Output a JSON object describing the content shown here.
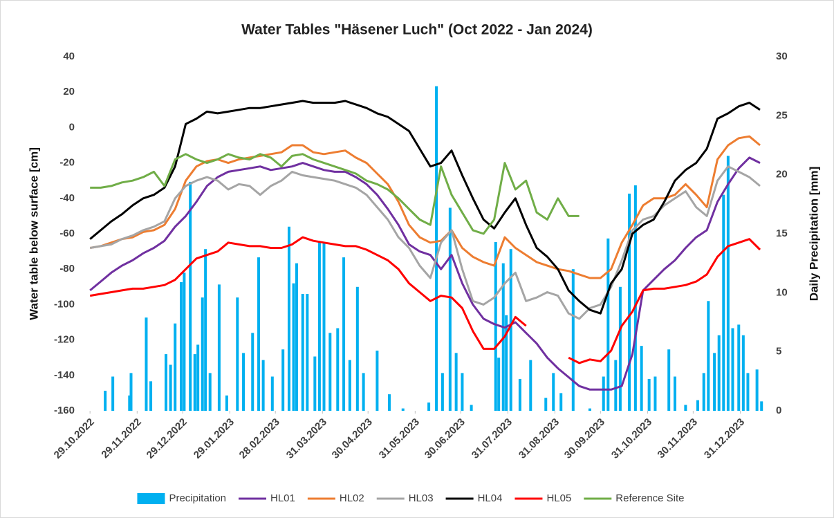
{
  "chart_data": {
    "type": "line",
    "title": "Water Tables \"Häsener Luch\" (Oct 2022 - Jan 2024)",
    "y_label": "Water table below surface [cm]",
    "y2_label": "Daily Precipitation [mm]",
    "xlim": [
      "2022-10-23",
      "2024-01-18"
    ],
    "xticks": [
      {
        "value": "2022-10-29",
        "label": "29.10.2022"
      },
      {
        "value": "2022-11-29",
        "label": "29.11.2022"
      },
      {
        "value": "2022-12-29",
        "label": "29.12.2022"
      },
      {
        "value": "2023-01-29",
        "label": "29.01.2023"
      },
      {
        "value": "2023-02-28",
        "label": "28.02.2023"
      },
      {
        "value": "2023-03-31",
        "label": "31.03.2023"
      },
      {
        "value": "2023-04-30",
        "label": "30.04.2023"
      },
      {
        "value": "2023-05-31",
        "label": "31.05.2023"
      },
      {
        "value": "2023-06-30",
        "label": "30.06.2023"
      },
      {
        "value": "2023-07-31",
        "label": "31.07.2023"
      },
      {
        "value": "2023-08-31",
        "label": "31.08.2023"
      },
      {
        "value": "2023-09-30",
        "label": "30.09.2023"
      },
      {
        "value": "2023-10-31",
        "label": "31.10.2023"
      },
      {
        "value": "2023-11-30",
        "label": "30.11.2023"
      },
      {
        "value": "2023-12-31",
        "label": "31.12.2023"
      }
    ],
    "ylim": [
      -160,
      40
    ],
    "yticks": [
      -160,
      -140,
      -120,
      -100,
      -80,
      -60,
      -40,
      -20,
      0,
      20,
      40
    ],
    "y2lim": [
      0,
      30
    ],
    "y2ticks": [
      0,
      5,
      10,
      15,
      20,
      25,
      30
    ],
    "legend": "bottom",
    "x": [
      "2022-10-29",
      "2022-11-05",
      "2022-11-12",
      "2022-11-19",
      "2022-11-26",
      "2022-12-03",
      "2022-12-10",
      "2022-12-17",
      "2022-12-24",
      "2022-12-31",
      "2023-01-07",
      "2023-01-14",
      "2023-01-21",
      "2023-01-28",
      "2023-02-04",
      "2023-02-11",
      "2023-02-18",
      "2023-02-25",
      "2023-03-04",
      "2023-03-11",
      "2023-03-18",
      "2023-03-25",
      "2023-04-01",
      "2023-04-08",
      "2023-04-15",
      "2023-04-22",
      "2023-04-29",
      "2023-05-06",
      "2023-05-13",
      "2023-05-20",
      "2023-05-27",
      "2023-06-03",
      "2023-06-10",
      "2023-06-17",
      "2023-06-24",
      "2023-07-01",
      "2023-07-08",
      "2023-07-15",
      "2023-07-22",
      "2023-07-29",
      "2023-08-05",
      "2023-08-12",
      "2023-08-19",
      "2023-08-26",
      "2023-09-02",
      "2023-09-09",
      "2023-09-16",
      "2023-09-23",
      "2023-09-30",
      "2023-10-07",
      "2023-10-14",
      "2023-10-21",
      "2023-10-28",
      "2023-11-04",
      "2023-11-11",
      "2023-11-18",
      "2023-11-25",
      "2023-12-02",
      "2023-12-09",
      "2023-12-16",
      "2023-12-23",
      "2023-12-30",
      "2024-01-06",
      "2024-01-13"
    ],
    "series": [
      {
        "name": "Precipitation",
        "type": "bar",
        "axis": "y2",
        "color": "#00b0f0",
        "x": [
          "2022-11-08",
          "2022-11-13",
          "2022-11-24",
          "2022-11-25",
          "2022-12-05",
          "2022-12-08",
          "2022-12-18",
          "2022-12-21",
          "2022-12-24",
          "2022-12-28",
          "2022-12-30",
          "2023-01-03",
          "2023-01-06",
          "2023-01-08",
          "2023-01-11",
          "2023-01-13",
          "2023-01-16",
          "2023-01-22",
          "2023-01-27",
          "2023-02-03",
          "2023-02-07",
          "2023-02-13",
          "2023-02-17",
          "2023-02-20",
          "2023-02-26",
          "2023-03-05",
          "2023-03-09",
          "2023-03-12",
          "2023-03-14",
          "2023-03-18",
          "2023-03-21",
          "2023-03-26",
          "2023-03-29",
          "2023-04-01",
          "2023-04-05",
          "2023-04-10",
          "2023-04-14",
          "2023-04-18",
          "2023-04-23",
          "2023-04-27",
          "2023-05-06",
          "2023-05-14",
          "2023-05-23",
          "2023-06-09",
          "2023-06-14",
          "2023-06-18",
          "2023-06-23",
          "2023-06-27",
          "2023-07-01",
          "2023-07-07",
          "2023-07-23",
          "2023-07-25",
          "2023-07-28",
          "2023-07-30",
          "2023-08-02",
          "2023-08-08",
          "2023-08-15",
          "2023-08-25",
          "2023-08-30",
          "2023-09-04",
          "2023-09-12",
          "2023-09-23",
          "2023-10-02",
          "2023-10-05",
          "2023-10-10",
          "2023-10-13",
          "2023-10-19",
          "2023-10-23",
          "2023-10-27",
          "2023-11-01",
          "2023-11-05",
          "2023-11-14",
          "2023-11-18",
          "2023-11-25",
          "2023-12-03",
          "2023-12-07",
          "2023-12-10",
          "2023-12-14",
          "2023-12-17",
          "2023-12-20",
          "2023-12-23",
          "2023-12-26",
          "2023-12-30",
          "2024-01-02",
          "2024-01-05",
          "2024-01-11",
          "2024-01-14"
        ],
        "values": [
          1.7,
          2.9,
          1.3,
          3.2,
          7.9,
          2.5,
          4.8,
          3.9,
          7.4,
          10.9,
          11.7,
          19.4,
          4.8,
          5.6,
          9.6,
          13.7,
          3.2,
          10.7,
          1.3,
          9.6,
          4.9,
          6.6,
          13,
          4.3,
          2.9,
          5.2,
          15.6,
          10.8,
          12.5,
          9.9,
          9.9,
          4.6,
          14.3,
          14.2,
          6.6,
          7,
          13,
          4.3,
          10.5,
          3.2,
          5.1,
          1.4,
          0.2,
          0.7,
          27.5,
          3.2,
          17.2,
          4.9,
          3.2,
          0.5,
          14.3,
          4.5,
          12.5,
          8.1,
          13.7,
          2.7,
          4.3,
          1.1,
          3.2,
          1.5,
          12,
          0.2,
          2.9,
          14.6,
          4.3,
          10.5,
          18.4,
          19.1,
          5.5,
          2.7,
          2.9,
          5.2,
          2.9,
          0.5,
          0.9,
          3.2,
          9.3,
          4.9,
          6.4,
          18.3,
          21.6,
          7,
          7.3,
          6.4,
          3.2,
          3.5,
          0.8
        ]
      },
      {
        "name": "HL01",
        "color": "#7030a0",
        "values": [
          -92,
          -87,
          -82,
          -78,
          -75,
          -71,
          -68,
          -64,
          -56,
          -50,
          -42,
          -33,
          -28,
          -25,
          -24,
          -23,
          -22,
          -24,
          -23,
          -22,
          -20,
          -22,
          -24,
          -25,
          -25,
          -28,
          -32,
          -38,
          -46,
          -55,
          -66,
          -70,
          -72,
          -80,
          -72,
          -88,
          -100,
          -108,
          -111,
          -113,
          -110,
          -116,
          -122,
          -130,
          -136,
          -141,
          -146,
          -148,
          -148,
          -148,
          -146,
          -128,
          -92,
          -86,
          -80,
          -75,
          -68,
          -62,
          -58,
          -42,
          -32,
          -23,
          -17,
          -20
        ]
      },
      {
        "name": "HL02",
        "color": "#ed7d31",
        "values": [
          -68,
          -67,
          -65,
          -63,
          -62,
          -59,
          -58,
          -55,
          -46,
          -30,
          -22,
          -19,
          -18,
          -20,
          -18,
          -17,
          -16,
          -15,
          -14,
          -10,
          -10,
          -14,
          -15,
          -14,
          -13,
          -17,
          -20,
          -26,
          -32,
          -42,
          -55,
          -62,
          -65,
          -64,
          -58,
          -68,
          -73,
          -76,
          -78,
          -62,
          -68,
          -72,
          -76,
          -78,
          -80,
          -81,
          -83,
          -85,
          -85,
          -80,
          -65,
          -55,
          -44,
          -40,
          -40,
          -38,
          -32,
          -38,
          -45,
          -18,
          -10,
          -6,
          -5,
          -10
        ]
      },
      {
        "name": "HL03",
        "color": "#a5a5a5",
        "values": [
          -68,
          -67,
          -66,
          -63,
          -61,
          -58,
          -56,
          -53,
          -40,
          -33,
          -30,
          -28,
          -30,
          -35,
          -32,
          -33,
          -38,
          -33,
          -30,
          -25,
          -27,
          -28,
          -29,
          -30,
          -32,
          -34,
          -38,
          -45,
          -52,
          -62,
          -68,
          -78,
          -85,
          -65,
          -58,
          -80,
          -98,
          -100,
          -96,
          -88,
          -82,
          -98,
          -96,
          -93,
          -95,
          -105,
          -108,
          -102,
          -100,
          -90,
          -75,
          -58,
          -52,
          -50,
          -44,
          -40,
          -36,
          -45,
          -50,
          -30,
          -22,
          -25,
          -28,
          -33
        ]
      },
      {
        "name": "HL04",
        "color": "#000000",
        "values": [
          -63,
          -58,
          -53,
          -49,
          -44,
          -40,
          -38,
          -34,
          -22,
          2,
          5,
          9,
          8,
          9,
          10,
          11,
          11,
          12,
          13,
          14,
          15,
          14,
          14,
          14,
          15,
          13,
          11,
          8,
          6,
          2,
          -2,
          -12,
          -22,
          -20,
          -13,
          -27,
          -40,
          -52,
          -57,
          -48,
          -40,
          -55,
          -68,
          -73,
          -80,
          -92,
          -98,
          -103,
          -105,
          -88,
          -80,
          -60,
          -55,
          -52,
          -42,
          -30,
          -24,
          -20,
          -12,
          5,
          8,
          12,
          14,
          10
        ]
      },
      {
        "name": "HL05",
        "color": "#ff0000",
        "values": [
          -95,
          -94,
          -93,
          -92,
          -91,
          -91,
          -90,
          -89,
          -86,
          -80,
          -74,
          -72,
          -70,
          -65,
          -66,
          -67,
          -67,
          -68,
          -68,
          -66,
          -62,
          -64,
          -65,
          -66,
          -67,
          -67,
          -69,
          -72,
          -75,
          -80,
          -88,
          -93,
          -98,
          -95,
          -96,
          -102,
          -115,
          -125,
          -125,
          -118,
          -107,
          -112,
          null,
          null,
          null,
          -130,
          -133,
          -131,
          -132,
          -126,
          -112,
          -104,
          -92,
          -91,
          -91,
          -90,
          -89,
          -87,
          -83,
          -73,
          -67,
          -65,
          -63,
          -69
        ]
      },
      {
        "name": "Reference Site",
        "color": "#70ad47",
        "values": [
          -34,
          -34,
          -33,
          -31,
          -30,
          -28,
          -25,
          -33,
          -18,
          -15,
          -18,
          -20,
          -18,
          -15,
          -17,
          -18,
          -15,
          -17,
          -22,
          -16,
          -15,
          -18,
          -20,
          -22,
          -24,
          -26,
          -30,
          -32,
          -35,
          -40,
          -46,
          -52,
          -55,
          -22,
          -38,
          -48,
          -58,
          -60,
          -52,
          -20,
          -35,
          -30,
          -48,
          -52,
          -40,
          -50,
          -50,
          null,
          null,
          null,
          null,
          null,
          null,
          null,
          null,
          null,
          null,
          null,
          null,
          null,
          null,
          null,
          null,
          null
        ]
      }
    ]
  }
}
